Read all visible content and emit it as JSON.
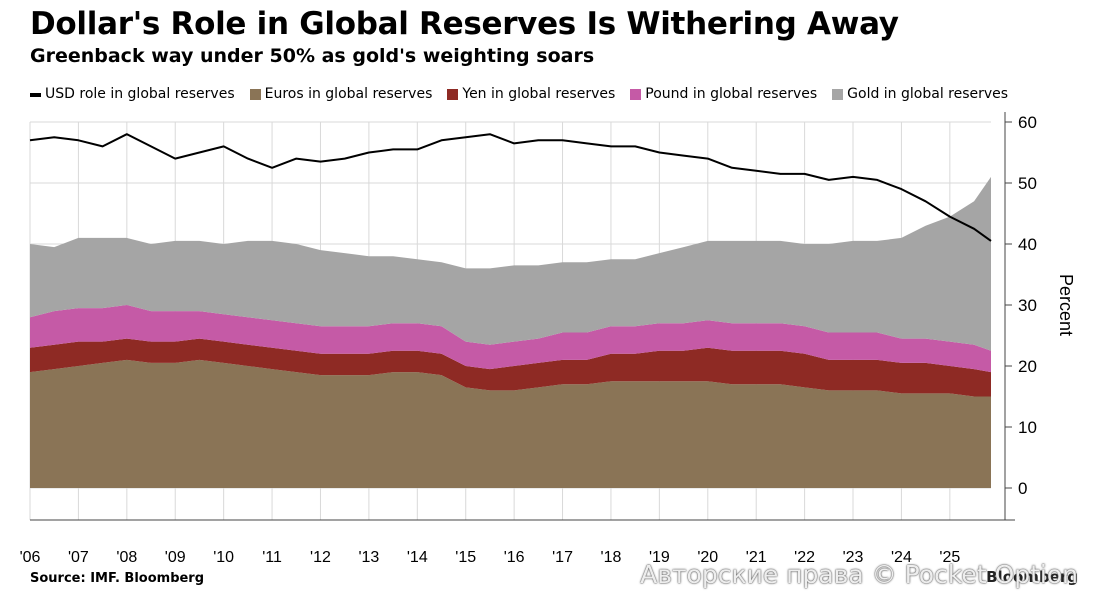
{
  "title": "Dollar's Role in Global Reserves Is Withering Away",
  "subtitle": "Greenback way under 50% as gold's weighting soars",
  "source": "Source: IMF. Bloomberg",
  "brand": "Bloomberg",
  "watermark": "Авторские права © Pocket Option",
  "chart_data": {
    "type": "area",
    "ylabel": "Percent",
    "ylim": [
      0,
      60
    ],
    "yticks": [
      0,
      10,
      20,
      30,
      40,
      50,
      60
    ],
    "grid": true,
    "legend_position": "top",
    "x_range": [
      2006.0,
      2025.85
    ],
    "x_ticks": [
      {
        "year": 2006,
        "label": "'06"
      },
      {
        "year": 2007,
        "label": "'07"
      },
      {
        "year": 2008,
        "label": "'08"
      },
      {
        "year": 2009,
        "label": "'09"
      },
      {
        "year": 2010,
        "label": "'10"
      },
      {
        "year": 2011,
        "label": "'11"
      },
      {
        "year": 2012,
        "label": "'12"
      },
      {
        "year": 2013,
        "label": "'13"
      },
      {
        "year": 2014,
        "label": "'14"
      },
      {
        "year": 2015,
        "label": "'15"
      },
      {
        "year": 2016,
        "label": "'16"
      },
      {
        "year": 2017,
        "label": "'17"
      },
      {
        "year": 2018,
        "label": "'18"
      },
      {
        "year": 2019,
        "label": "'19"
      },
      {
        "year": 2020,
        "label": "'20"
      },
      {
        "year": 2021,
        "label": "'21"
      },
      {
        "year": 2022,
        "label": "'22"
      },
      {
        "year": 2023,
        "label": "'23"
      },
      {
        "year": 2024,
        "label": "'24"
      },
      {
        "year": 2025,
        "label": "'25"
      }
    ],
    "x": [
      2006.0,
      2006.5,
      2007.0,
      2007.5,
      2008.0,
      2008.5,
      2009.0,
      2009.5,
      2010.0,
      2010.5,
      2011.0,
      2011.5,
      2012.0,
      2012.5,
      2013.0,
      2013.5,
      2014.0,
      2014.5,
      2015.0,
      2015.5,
      2016.0,
      2016.5,
      2017.0,
      2017.5,
      2018.0,
      2018.5,
      2019.0,
      2019.5,
      2020.0,
      2020.5,
      2021.0,
      2021.5,
      2022.0,
      2022.5,
      2023.0,
      2023.5,
      2024.0,
      2024.5,
      2025.0,
      2025.5,
      2025.85
    ],
    "series": [
      {
        "name": "USD role in global reserves",
        "kind": "line",
        "color": "#000000",
        "values": [
          57,
          57.5,
          57,
          56,
          58,
          56,
          54,
          55,
          56,
          54,
          52.5,
          54,
          53.5,
          54,
          55,
          55.5,
          55.5,
          57,
          57.5,
          58,
          56.5,
          57,
          57,
          56.5,
          56,
          56,
          55,
          54.5,
          54,
          52.5,
          52,
          51.5,
          51.5,
          50.5,
          51,
          50.5,
          49,
          47,
          44.5,
          42.5,
          40.5
        ]
      },
      {
        "name": "Euros in global reserves",
        "kind": "area",
        "color": "#8a7456",
        "values": [
          19,
          19.5,
          20,
          20.5,
          21,
          20.5,
          20.5,
          21,
          20.5,
          20,
          19.5,
          19,
          18.5,
          18.5,
          18.5,
          19,
          19,
          18.5,
          16.5,
          16,
          16,
          16.5,
          17,
          17,
          17.5,
          17.5,
          17.5,
          17.5,
          17.5,
          17,
          17,
          17,
          16.5,
          16,
          16,
          16,
          15.5,
          15.5,
          15.5,
          15,
          15
        ]
      },
      {
        "name": "Yen in global reserves",
        "kind": "area",
        "color": "#8e2a24",
        "values": [
          4,
          4,
          4,
          3.5,
          3.5,
          3.5,
          3.5,
          3.5,
          3.5,
          3.5,
          3.5,
          3.5,
          3.5,
          3.5,
          3.5,
          3.5,
          3.5,
          3.5,
          3.5,
          3.5,
          4,
          4,
          4,
          4,
          4.5,
          4.5,
          5,
          5,
          5.5,
          5.5,
          5.5,
          5.5,
          5.5,
          5,
          5,
          5,
          5,
          5,
          4.5,
          4.5,
          4
        ]
      },
      {
        "name": "Pound in global reserves",
        "kind": "area",
        "color": "#c55aa6",
        "values": [
          5,
          5.5,
          5.5,
          5.5,
          5.5,
          5,
          5,
          4.5,
          4.5,
          4.5,
          4.5,
          4.5,
          4.5,
          4.5,
          4.5,
          4.5,
          4.5,
          4.5,
          4,
          4,
          4,
          4,
          4.5,
          4.5,
          4.5,
          4.5,
          4.5,
          4.5,
          4.5,
          4.5,
          4.5,
          4.5,
          4.5,
          4.5,
          4.5,
          4.5,
          4,
          4,
          4,
          4,
          3.5
        ]
      },
      {
        "name": "Gold in global reserves",
        "kind": "area",
        "color": "#a5a5a5",
        "values": [
          12,
          10.5,
          11.5,
          11.5,
          11,
          11,
          11.5,
          11.5,
          11.5,
          12.5,
          13,
          13,
          12.5,
          12,
          11.5,
          11,
          10.5,
          10.5,
          12,
          12.5,
          12.5,
          12,
          11.5,
          11.5,
          11,
          11,
          11.5,
          12.5,
          13,
          13.5,
          13.5,
          13.5,
          13.5,
          14.5,
          15,
          15,
          16.5,
          18.5,
          20.5,
          23.5,
          28.5
        ]
      }
    ]
  }
}
